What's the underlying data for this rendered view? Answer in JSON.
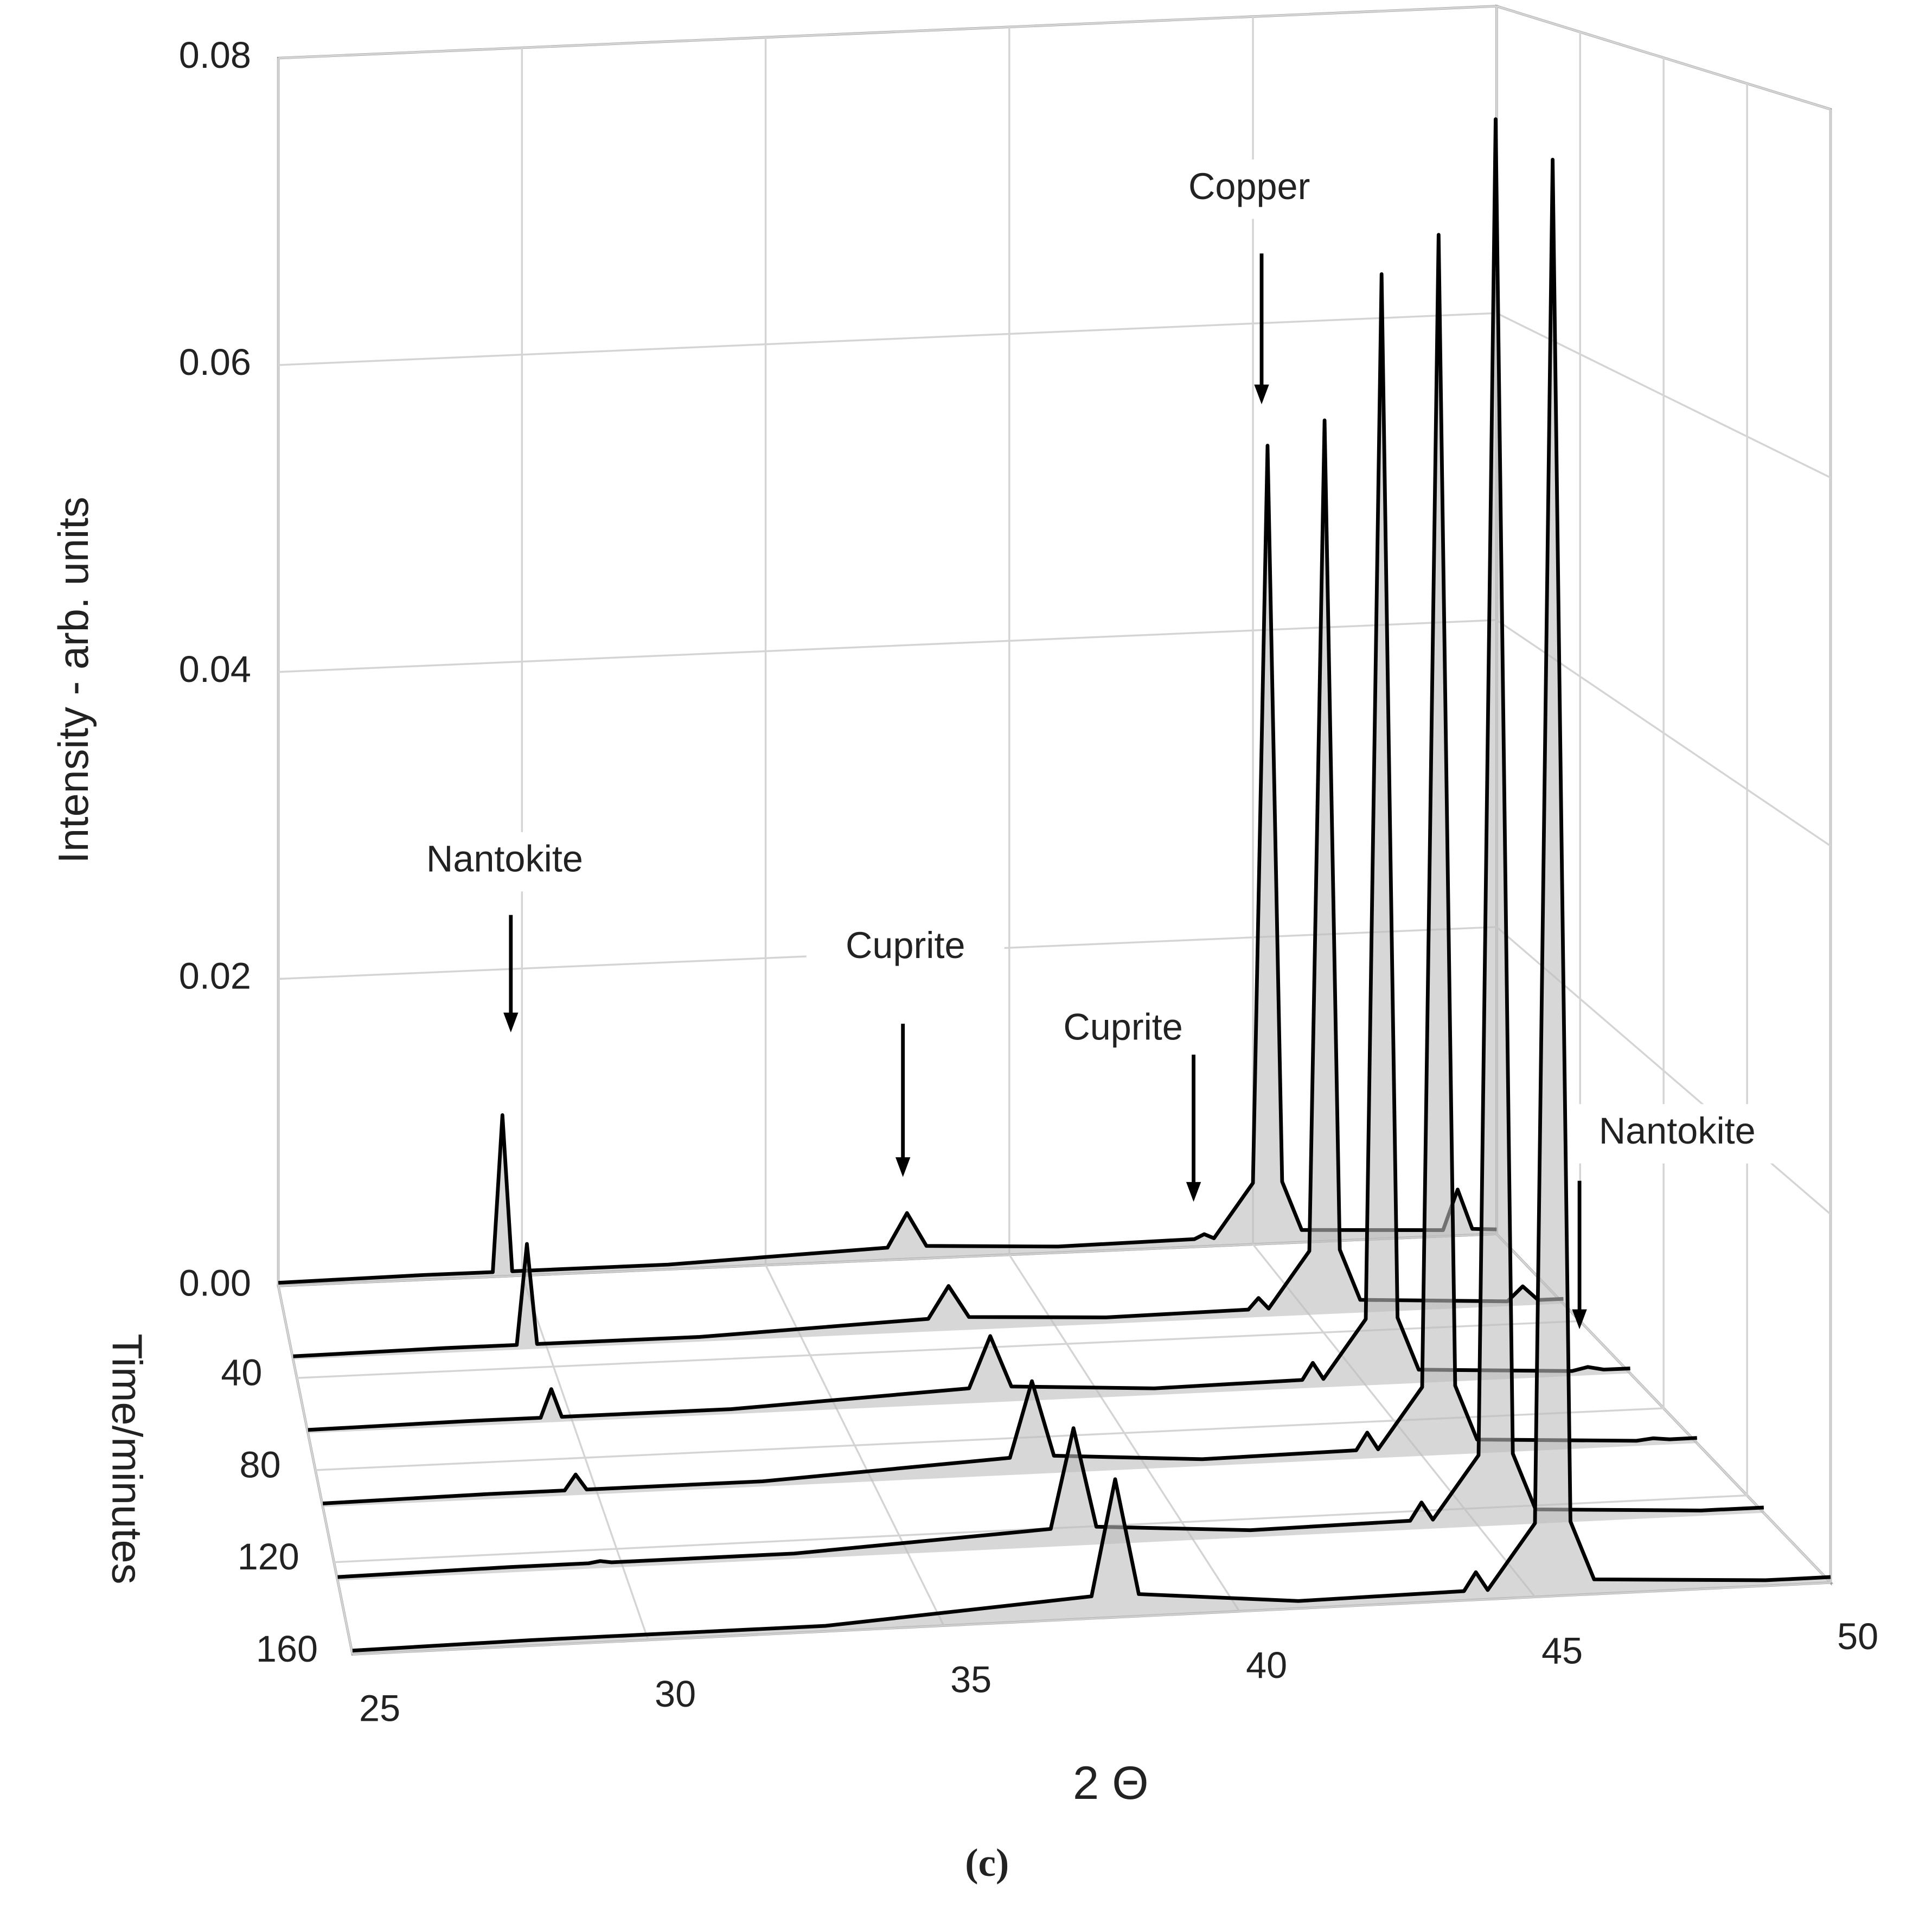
{
  "chart_data": {
    "type": "waterfall3d",
    "y_label": "Intensity - arb. units",
    "x_label": "2 Θ",
    "z_label": "Time/minutes",
    "caption": "(c)",
    "annotations": [
      "Nantokite",
      "Cuprite",
      "Cuprite",
      "Copper",
      "Nantokite"
    ],
    "xlim": [
      25,
      50
    ],
    "xticks": [
      25,
      30,
      35,
      40,
      45,
      50
    ],
    "ylim": [
      0,
      0.08
    ],
    "yticks": [
      {
        "value": 0,
        "label": "0.00"
      },
      0.02,
      0.04,
      0.06,
      0.08
    ],
    "zlim": [
      0,
      160
    ],
    "zticks": [
      40,
      80,
      120,
      160
    ],
    "grid": true,
    "color": "#000000",
    "fill_color": "#bdbdbd",
    "x": [
      25,
      28,
      29.4,
      29.6,
      29.8,
      33,
      37.5,
      37.9,
      38.3,
      41,
      43.8,
      44,
      44.2,
      45,
      45.3,
      45.6,
      46,
      48.9,
      49.2,
      49.5,
      50
    ],
    "series": [
      {
        "z": 0,
        "values": [
          0.0002,
          0.0003,
          0.0003,
          0.0105,
          0.0003,
          0.0003,
          0.0008,
          0.003,
          0.0008,
          0.0004,
          0.0005,
          0.0008,
          0.0005,
          0.004,
          0.052,
          0.004,
          0.0008,
          0.0004,
          0.003,
          0.0004,
          0.0003
        ]
      },
      {
        "z": 32,
        "values": [
          0.0002,
          0.0003,
          0.0003,
          0.0066,
          0.0003,
          0.0003,
          0.0008,
          0.0028,
          0.0008,
          0.0004,
          0.0005,
          0.0012,
          0.0005,
          0.004,
          0.056,
          0.004,
          0.0008,
          0.0003,
          0.0012,
          0.0003,
          0.0003
        ]
      },
      {
        "z": 64,
        "values": [
          0.0002,
          0.0003,
          0.0003,
          0.002,
          0.0003,
          0.0003,
          0.0009,
          0.004,
          0.0009,
          0.0004,
          0.0005,
          0.0015,
          0.0005,
          0.004,
          0.067,
          0.004,
          0.0008,
          0.0003,
          0.0005,
          0.0003,
          0.0003
        ]
      },
      {
        "z": 96,
        "values": [
          0.0002,
          0.0003,
          0.0003,
          0.0012,
          0.0003,
          0.0003,
          0.001,
          0.0054,
          0.001,
          0.0004,
          0.0005,
          0.0015,
          0.0005,
          0.004,
          0.071,
          0.004,
          0.0008,
          0.0003,
          0.0004,
          0.0003,
          0.0003
        ]
      },
      {
        "z": 128,
        "values": [
          0.0002,
          0.0003,
          0.0003,
          0.0004,
          0.0003,
          0.0003,
          0.001,
          0.0066,
          0.001,
          0.0004,
          0.0005,
          0.0015,
          0.0005,
          0.004,
          0.079,
          0.004,
          0.0008,
          0.0003,
          0.0003,
          0.0003,
          0.0003
        ]
      },
      {
        "z": 160,
        "values": [
          0.0002,
          0.0003,
          0.0003,
          0.0003,
          0.0003,
          0.0003,
          0.0012,
          0.0075,
          0.0012,
          0.0004,
          0.0005,
          0.0015,
          0.0005,
          0.004,
          0.078,
          0.004,
          0.0008,
          0.0003,
          0.0003,
          0.0003,
          0.0003
        ]
      }
    ]
  }
}
